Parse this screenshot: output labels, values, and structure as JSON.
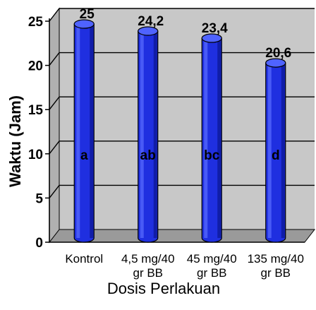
{
  "chart_data": {
    "type": "bar",
    "categories": [
      "Kontrol",
      "4,5 mg/40 gr BB",
      "45 mg/40 gr BB",
      "135 mg/40 gr BB"
    ],
    "values": [
      25,
      24.2,
      23.4,
      20.6
    ],
    "value_labels": [
      "25",
      "24,2",
      "23,4",
      "20,6"
    ],
    "significance_letters": [
      "a",
      "ab",
      "bc",
      "d"
    ],
    "title": "",
    "xlabel": "Dosis Perlakuan",
    "ylabel": "Waktu (Jam)",
    "ylim": [
      0,
      25
    ],
    "yticks": [
      0,
      5,
      10,
      15,
      20,
      25
    ],
    "grid": true,
    "bar_style": "3d-cylinder",
    "colors": {
      "bar": "#1f2fe0",
      "bar_dark": "#0a1690",
      "bar_top": "#4f63ff",
      "wall": "#c8c8c8",
      "floor": "#9a9a9a"
    }
  }
}
